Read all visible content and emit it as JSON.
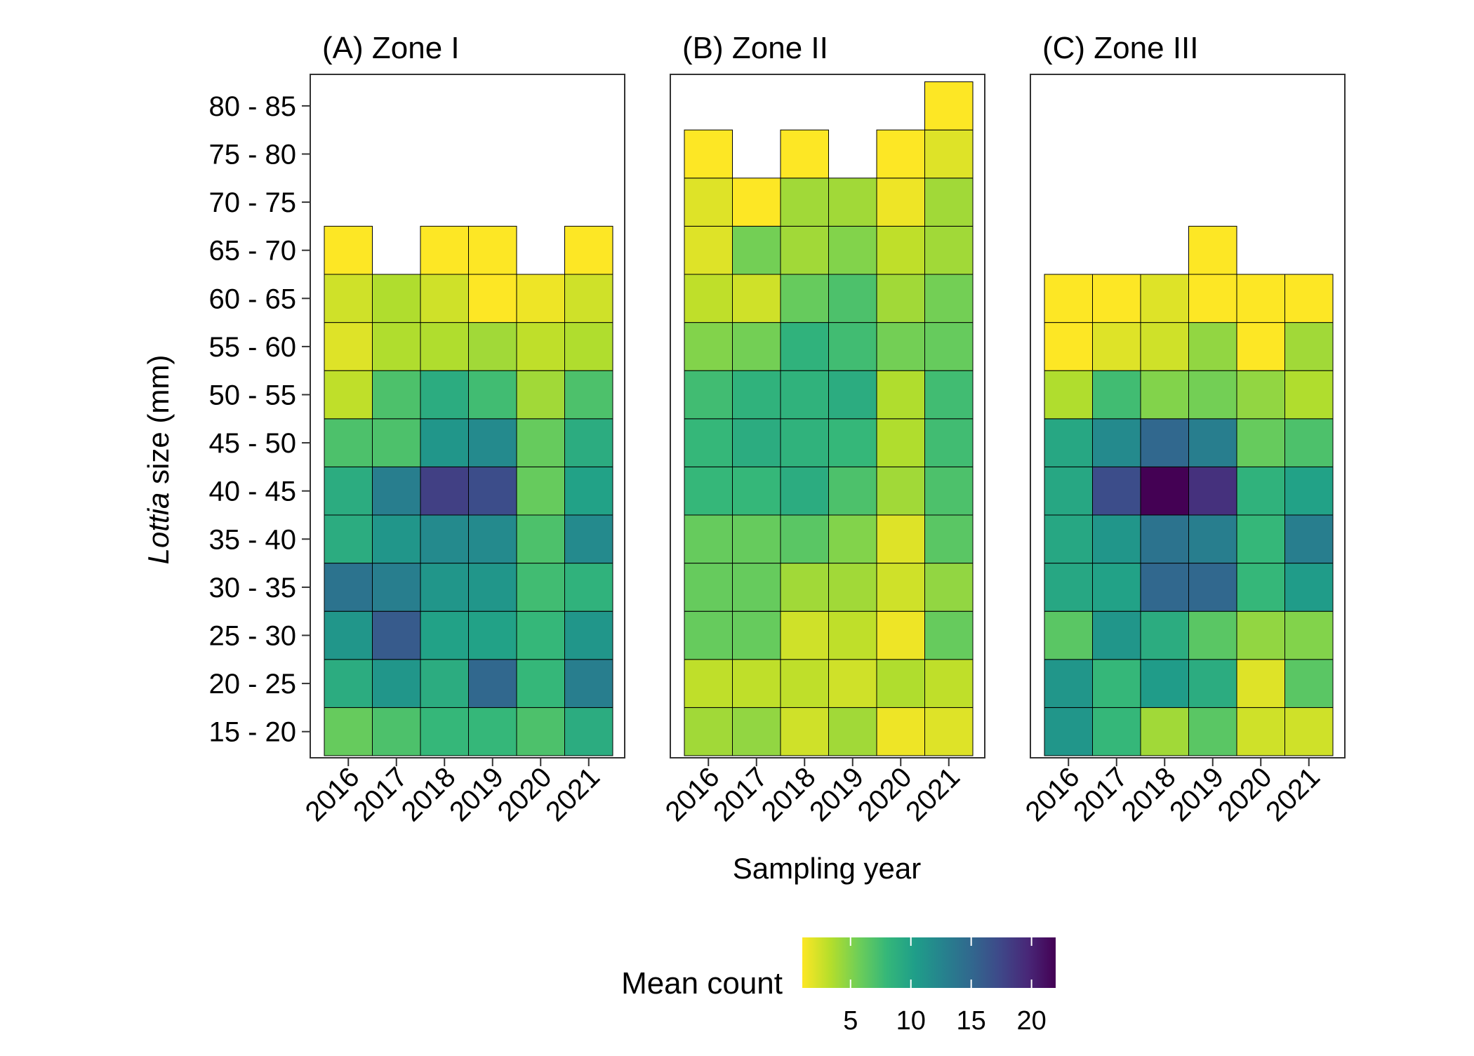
{
  "chart_data": {
    "type": "heatmap",
    "ylabel_italic": "Lottia",
    "ylabel_rest": " size (mm)",
    "xlabel": "Sampling year",
    "years": [
      "2016",
      "2017",
      "2018",
      "2019",
      "2020",
      "2021"
    ],
    "size_classes": [
      "15 - 20",
      "20 - 25",
      "25 - 30",
      "30 - 35",
      "35 - 40",
      "40 - 45",
      "45 - 50",
      "50 - 55",
      "55 - 60",
      "60 - 65",
      "65 - 70",
      "70 - 75",
      "75 - 80",
      "80 - 85"
    ],
    "panels": [
      {
        "title": "(A) Zone  I",
        "values": [
          [
            6,
            7,
            8,
            8,
            7,
            9
          ],
          [
            9,
            11,
            9,
            15,
            8,
            13
          ],
          [
            11,
            16,
            10,
            10,
            8,
            11
          ],
          [
            14,
            13,
            11,
            11,
            7.5,
            8.5
          ],
          [
            9,
            11,
            12,
            12,
            7,
            12
          ],
          [
            9,
            13,
            18,
            17,
            6,
            10
          ],
          [
            7,
            7,
            11,
            12,
            6,
            9
          ],
          [
            3,
            7,
            9,
            7.5,
            4,
            7
          ],
          [
            2,
            3.5,
            3.5,
            4,
            3,
            3.5
          ],
          [
            2.5,
            3.5,
            2.5,
            1,
            1.5,
            2.5
          ],
          [
            1,
            null,
            1,
            1,
            null,
            1
          ],
          [
            null,
            null,
            null,
            null,
            null,
            null
          ],
          [
            null,
            null,
            null,
            null,
            null,
            null
          ],
          [
            null,
            null,
            null,
            null,
            null,
            null
          ]
        ]
      },
      {
        "title": "(B) Zone  II",
        "values": [
          [
            4,
            4.5,
            2.5,
            4,
            1.5,
            2
          ],
          [
            3,
            3,
            3,
            2.5,
            3.5,
            3
          ],
          [
            6,
            6,
            2.5,
            3,
            1.5,
            6
          ],
          [
            6,
            6,
            4,
            4,
            2.5,
            4.5
          ],
          [
            6,
            6,
            6.5,
            5,
            2,
            6.5
          ],
          [
            8,
            8,
            9,
            7,
            4,
            7
          ],
          [
            8,
            9,
            8.5,
            8,
            3.5,
            7.5
          ],
          [
            7.5,
            8.5,
            8.5,
            9,
            3.5,
            7.5
          ],
          [
            5,
            5.5,
            8.5,
            7.5,
            5.5,
            6
          ],
          [
            3,
            2.5,
            6,
            7,
            4,
            5.5
          ],
          [
            2,
            5.5,
            4,
            5,
            3,
            4
          ],
          [
            2,
            1,
            4,
            4,
            1.5,
            4
          ],
          [
            1,
            null,
            1,
            null,
            1,
            2
          ],
          [
            null,
            null,
            null,
            null,
            null,
            1
          ]
        ]
      },
      {
        "title": "(C) Zone  III",
        "values": [
          [
            11,
            8,
            4,
            6.5,
            2.5,
            2.5
          ],
          [
            11,
            8,
            10.5,
            9,
            2,
            6.5
          ],
          [
            6.5,
            11,
            9,
            6.5,
            4.5,
            5
          ],
          [
            9.5,
            10,
            15,
            15,
            8,
            10.5
          ],
          [
            9.5,
            11,
            14,
            13,
            8,
            13
          ],
          [
            9.5,
            17,
            22,
            19,
            8.5,
            10
          ],
          [
            9.5,
            12,
            15,
            13,
            6,
            7
          ],
          [
            3.5,
            7.5,
            5,
            5.5,
            4.5,
            3.5
          ],
          [
            1,
            2,
            2.5,
            4.5,
            1,
            4
          ],
          [
            1,
            1,
            2,
            1,
            1,
            1
          ],
          [
            null,
            null,
            null,
            1,
            null,
            null
          ],
          [
            null,
            null,
            null,
            null,
            null,
            null
          ],
          [
            null,
            null,
            null,
            null,
            null,
            null
          ],
          [
            null,
            null,
            null,
            null,
            null,
            null
          ]
        ]
      }
    ],
    "legend": {
      "title": "Mean count",
      "ticks": [
        5,
        10,
        15,
        20
      ],
      "range": [
        1,
        22
      ],
      "placement": "bottom",
      "colors": [
        "#fde725",
        "#b5de2b",
        "#6ece58",
        "#35b779",
        "#1f9e89",
        "#26828e",
        "#31688e",
        "#3e4989",
        "#482878",
        "#440154"
      ]
    }
  }
}
